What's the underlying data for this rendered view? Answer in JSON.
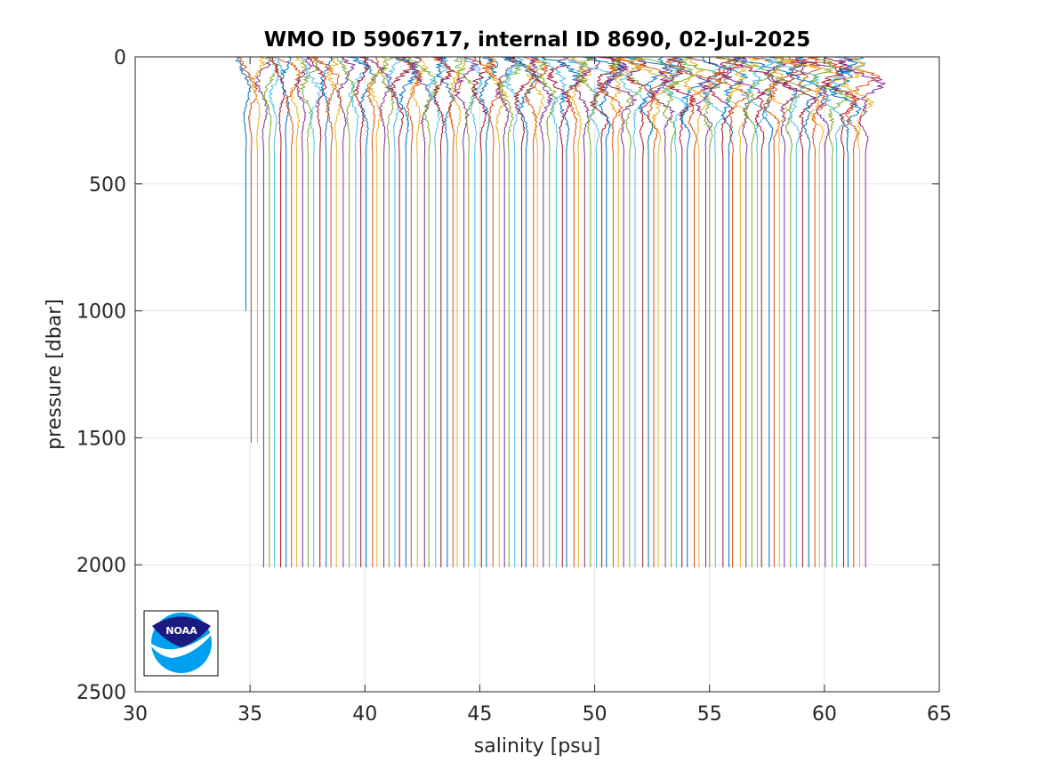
{
  "chart_data": {
    "type": "line",
    "title": "WMO ID 5906717, internal ID 8690, 02-Jul-2025",
    "xlabel": "salinity [psu]",
    "ylabel": "pressure [dbar]",
    "xlim": [
      30,
      65
    ],
    "ylim": [
      0,
      2500
    ],
    "y_reversed": true,
    "xticks": [
      30,
      35,
      40,
      45,
      50,
      55,
      60,
      65
    ],
    "yticks": [
      0,
      500,
      1000,
      1500,
      2000,
      2500
    ],
    "grid": true,
    "legend": "none",
    "series_description": "Stacked salinity profiles, each offset by 0.25 psu; near-surface values fluctuate, deep values nearly constant",
    "profile_offset": 0.25,
    "num_profiles": 109,
    "deep_salinity_first": 34.8,
    "first_profiles_max_pressure": [
      1000,
      1530,
      1530
    ],
    "default_max_pressure": 2010,
    "colors": [
      "#0072BD",
      "#D95319",
      "#EDB120",
      "#7E2F8E",
      "#77AC30",
      "#4DBEEE",
      "#A2142F"
    ]
  },
  "logo": {
    "name": "noaa-logo",
    "text": "NOAA"
  }
}
